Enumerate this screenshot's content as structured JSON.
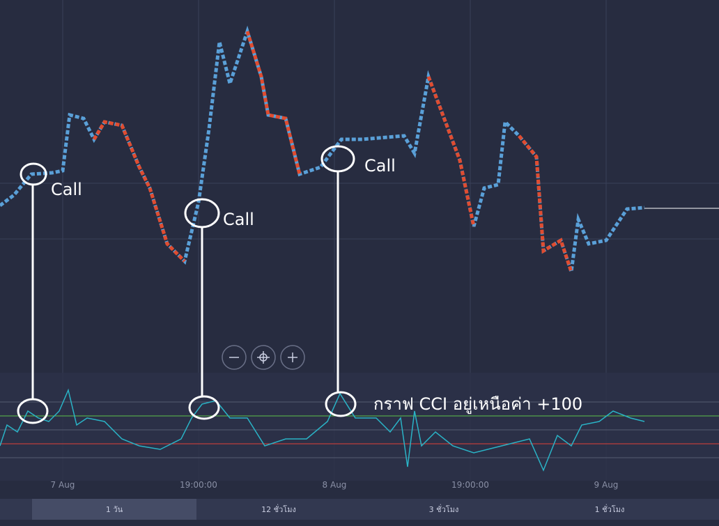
{
  "annotations": {
    "calls": [
      "Call",
      "Call",
      "Call"
    ],
    "cci_note": "กราฟ CCI อยู่เหนือค่า +100"
  },
  "x_axis": {
    "labels": [
      "7 Aug",
      "19:00:00",
      "8 Aug",
      "19:00:00",
      "9 Aug"
    ]
  },
  "timeframes": [
    "1 วัน",
    "12 ชั่วโมง",
    "3 ชั่วโมง",
    "1 ชั่วโมง"
  ]
}
